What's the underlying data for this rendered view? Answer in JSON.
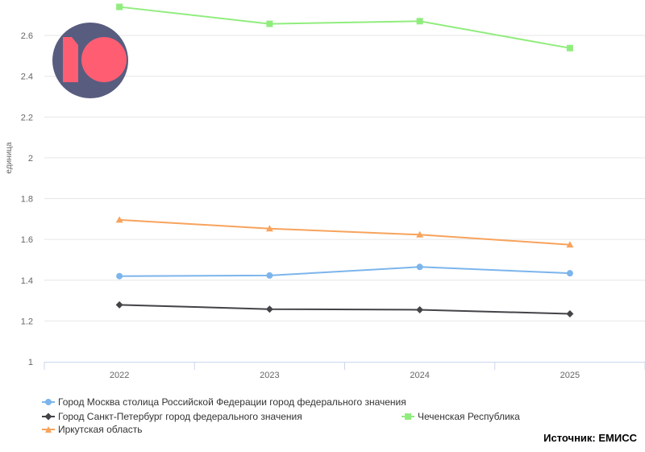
{
  "chart_data": {
    "type": "line",
    "x": [
      "2022",
      "2023",
      "2024",
      "2025"
    ],
    "ylabel": "единица",
    "ylim": [
      1,
      2.6
    ],
    "yticks": [
      "1",
      "1.2",
      "1.4",
      "1.6",
      "1.8",
      "2",
      "2.2",
      "2.4",
      "2.6"
    ],
    "grid": true,
    "legend_position": "bottom-left",
    "series": [
      {
        "name": "Город Москва столица Российской Федерации город федерального значения",
        "values": [
          1.42,
          1.423,
          1.465,
          1.434
        ],
        "color": "#7cb5ec",
        "marker": "circle"
      },
      {
        "name": "Город Санкт-Петербург город федерального значения",
        "values": [
          1.279,
          1.258,
          1.255,
          1.235
        ],
        "color": "#434348",
        "marker": "diamond"
      },
      {
        "name": "Чеченская Республика",
        "values": [
          2.74,
          2.657,
          2.67,
          2.538
        ],
        "color": "#90ed7d",
        "marker": "square"
      },
      {
        "name": "Иркутская область",
        "values": [
          1.696,
          1.653,
          1.623,
          1.574
        ],
        "color": "#f7a35c",
        "marker": "triangle"
      }
    ]
  },
  "source_label": "Источник: ЕМИСС",
  "logo": {
    "colors": {
      "circle": "#585d7f",
      "mark": "#ff5e72"
    }
  }
}
